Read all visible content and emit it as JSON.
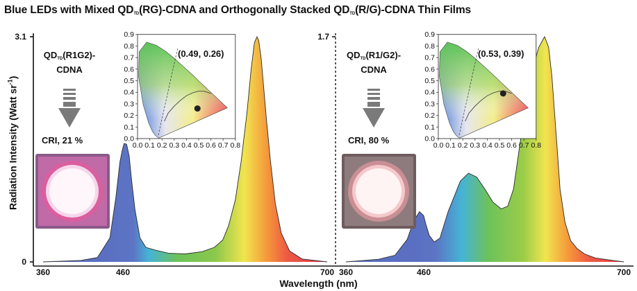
{
  "figure": {
    "title_parts": [
      "Blue LEDs with Mixed QD",
      "TD",
      "(RG)-CDNA and Orthogonally Stacked QD",
      "TD",
      "(R/G)-CDNA Thin Films"
    ],
    "ylabel_main": "Radiation Intensity (Watt sr",
    "ylabel_sup": "-1",
    "ylabel_end": ")",
    "xlabel": "Wavelength (nm)",
    "colors": {
      "blue": "#5b71c0",
      "green": "#7cc44c",
      "yellow": "#f2e651",
      "red": "#e83f4f",
      "axis": "#111111"
    }
  },
  "chart_data": [
    {
      "type": "area",
      "panel": "left",
      "label_parts": [
        "QD",
        "TD",
        "(R1G2)-",
        "CDNA"
      ],
      "cri": "CRI, 21 %",
      "xlim": [
        360,
        700
      ],
      "ylim": [
        0,
        3.1
      ],
      "xticks": [
        "360",
        "460",
        "700"
      ],
      "yticks": [
        "3.1",
        "0"
      ],
      "x": [
        360,
        405,
        425,
        440,
        447,
        452,
        455,
        457,
        460,
        463,
        466,
        470,
        476,
        483,
        495,
        510,
        530,
        550,
        565,
        575,
        582,
        590,
        597,
        604,
        609,
        613,
        616,
        618,
        621,
        624,
        627,
        632,
        638,
        645,
        655,
        670,
        700
      ],
      "y": [
        0,
        0.02,
        0.06,
        0.33,
        0.88,
        1.38,
        1.55,
        1.63,
        1.62,
        1.46,
        1.12,
        0.72,
        0.33,
        0.2,
        0.16,
        0.12,
        0.11,
        0.14,
        0.2,
        0.3,
        0.5,
        0.85,
        1.38,
        2.05,
        2.65,
        3.02,
        3.1,
        3.05,
        2.8,
        2.4,
        2.0,
        1.4,
        0.8,
        0.4,
        0.15,
        0.04,
        0.0
      ],
      "inset": {
        "type": "cie1931",
        "xticks": [
          "0.0",
          "0.1",
          "0.2",
          "0.3",
          "0.4",
          "0.5",
          "0.6",
          "0.7",
          "0.8"
        ],
        "yticks": [
          "0.0",
          "0.1",
          "0.2",
          "0.3",
          "0.4",
          "0.5",
          "0.6",
          "0.7",
          "0.8",
          "0.9"
        ],
        "point": [
          0.49,
          0.26
        ],
        "point_label": "(0.49, 0.26)"
      },
      "photo": {
        "glow": "#fff6fb",
        "ring": "#d95f9f",
        "frame": "#8a5a88"
      }
    },
    {
      "type": "area",
      "panel": "right",
      "label_parts": [
        "QD",
        "TD",
        "(R1/G2)-",
        "CDNA"
      ],
      "cri": "CRI, 80 %",
      "xlim": [
        360,
        700
      ],
      "ylim": [
        0,
        1.7
      ],
      "xticks": [
        "360",
        "460",
        "700"
      ],
      "yticks": [
        "1.7"
      ],
      "x": [
        360,
        400,
        420,
        435,
        443,
        450,
        455,
        458,
        462,
        468,
        475,
        485,
        500,
        510,
        520,
        530,
        540,
        550,
        558,
        565,
        572,
        580,
        588,
        596,
        603,
        608,
        612,
        615,
        618,
        622,
        628,
        635,
        643,
        652,
        665,
        700
      ],
      "y": [
        0,
        0.02,
        0.05,
        0.17,
        0.31,
        0.38,
        0.35,
        0.28,
        0.2,
        0.15,
        0.18,
        0.38,
        0.61,
        0.67,
        0.64,
        0.55,
        0.45,
        0.4,
        0.42,
        0.55,
        0.85,
        1.18,
        1.45,
        1.62,
        1.7,
        1.62,
        1.4,
        1.15,
        0.9,
        0.55,
        0.3,
        0.16,
        0.1,
        0.06,
        0.03,
        0.0
      ],
      "inset": {
        "type": "cie1931",
        "xticks": [
          "0.0",
          "0.1",
          "0.2",
          "0.3",
          "0.4",
          "0.5",
          "0.6",
          "0.7",
          "0.8"
        ],
        "yticks": [
          "0.0",
          "0.1",
          "0.2",
          "0.3",
          "0.4",
          "0.5",
          "0.6",
          "0.7",
          "0.8",
          "0.9"
        ],
        "point": [
          0.53,
          0.39
        ],
        "point_label": "(0.53, 0.39)"
      },
      "photo": {
        "glow": "#fff4f4",
        "ring": "#e8b0b4",
        "frame": "#6e5c5e"
      }
    }
  ]
}
